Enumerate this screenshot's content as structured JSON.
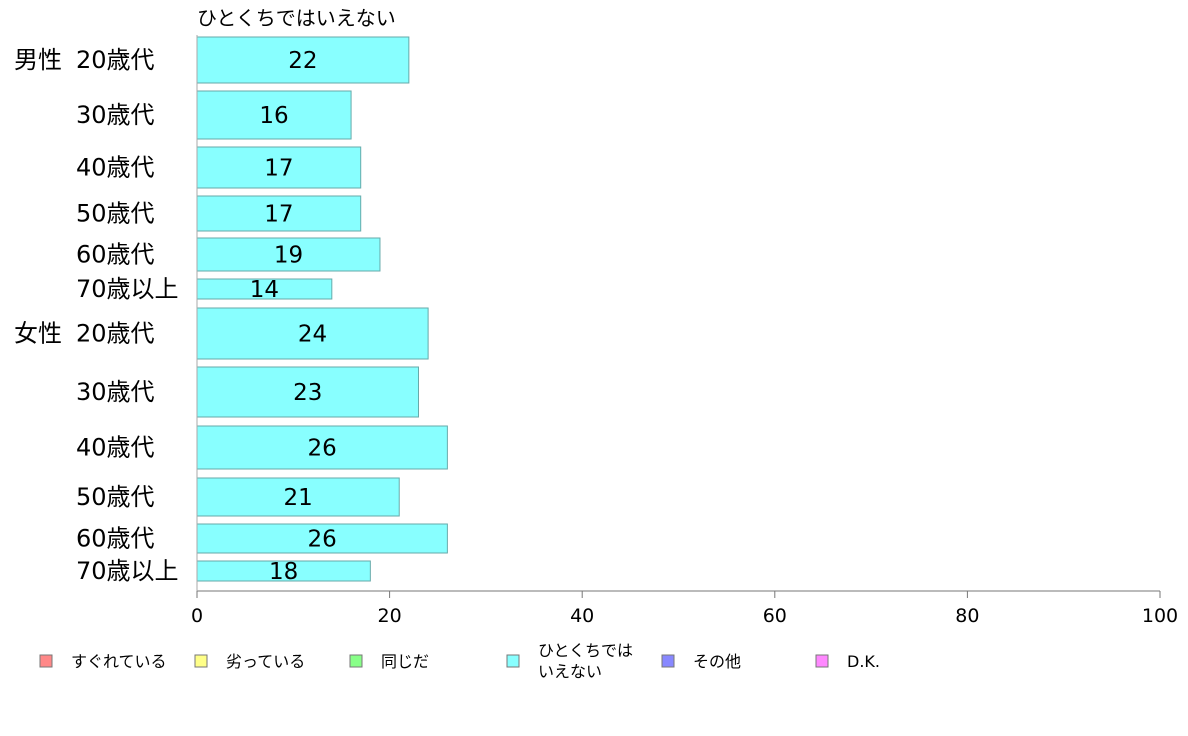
{
  "chart_data": {
    "type": "bar",
    "orientation": "horizontal",
    "series_title": "ひとくちではいえない",
    "groups": [
      "男性",
      "女性"
    ],
    "categories": [
      "20歳代",
      "30歳代",
      "40歳代",
      "50歳代",
      "60歳代",
      "70歳以上",
      "20歳代",
      "30歳代",
      "40歳代",
      "50歳代",
      "60歳代",
      "70歳以上"
    ],
    "category_groups": [
      0,
      0,
      0,
      0,
      0,
      0,
      1,
      1,
      1,
      1,
      1,
      1
    ],
    "series": [
      {
        "name": "ひとくちではいえない",
        "values": [
          22,
          16,
          17,
          17,
          19,
          14,
          24,
          23,
          26,
          21,
          26,
          18
        ],
        "color": "#88ffff"
      }
    ],
    "xlim": [
      0,
      100
    ],
    "xticks": [
      "0",
      "20",
      "40",
      "60",
      "80",
      "100"
    ],
    "legend": {
      "placement": "bottom",
      "items": [
        {
          "label": "すぐれている",
          "color": "#ff8888"
        },
        {
          "label": "劣っている",
          "color": "#ffff88"
        },
        {
          "label": "同じだ",
          "color": "#88ff88"
        },
        {
          "label": "ひとくちでは\nいえない",
          "color": "#88ffff"
        },
        {
          "label": "その他",
          "color": "#8888ff"
        },
        {
          "label": "D.K.",
          "color": "#ff88ff"
        }
      ]
    },
    "grid": false
  }
}
